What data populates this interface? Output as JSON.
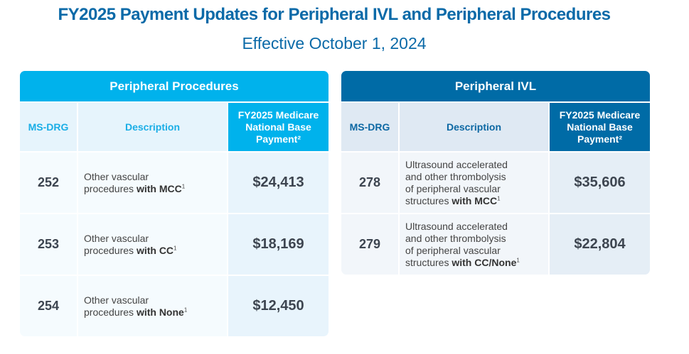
{
  "title": "FY2025 Payment Updates for Peripheral IVL and Peripheral Procedures",
  "subtitle": "Effective October 1, 2024",
  "colors": {
    "light_blue": "#00b2ec",
    "dark_blue": "#006ba6"
  },
  "tables": [
    {
      "heading": "Peripheral Procedures",
      "columns": [
        "MS-DRG",
        "Description",
        "FY2025 Medicare National Base Payment²"
      ],
      "rows": [
        {
          "code": "252",
          "desc": "Other vascular\nprocedures ",
          "bold": "with MCC",
          "sup": "1",
          "payment": "$24,413"
        },
        {
          "code": "253",
          "desc": "Other vascular\nprocedures ",
          "bold": "with CC",
          "sup": "1",
          "payment": "$18,169"
        },
        {
          "code": "254",
          "desc": "Other vascular\nprocedures ",
          "bold": "with None",
          "sup": "1",
          "payment": "$12,450"
        }
      ]
    },
    {
      "heading": "Peripheral IVL",
      "columns": [
        "MS-DRG",
        "Description",
        "FY2025 Medicare National Base Payment²"
      ],
      "rows": [
        {
          "code": "278",
          "desc": "Ultrasound accelerated\nand other thrombolysis\nof peripheral vascular\nstructures ",
          "bold": "with MCC",
          "sup": "1",
          "payment": "$35,606"
        },
        {
          "code": "279",
          "desc": "Ultrasound accelerated\nand other thrombolysis\nof peripheral vascular\nstructures ",
          "bold": "with CC/None",
          "sup": "1",
          "payment": "$22,804"
        }
      ]
    }
  ]
}
